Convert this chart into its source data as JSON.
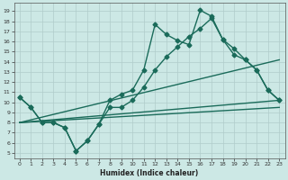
{
  "xlabel": "Humidex (Indice chaleur)",
  "background_color": "#cce8e5",
  "grid_color": "#b0ccca",
  "line_color": "#1a6b5a",
  "x_ticks": [
    0,
    1,
    2,
    3,
    4,
    5,
    6,
    7,
    8,
    9,
    10,
    11,
    12,
    13,
    14,
    15,
    16,
    17,
    18,
    19,
    20,
    21,
    22,
    23
  ],
  "y_ticks": [
    5,
    6,
    7,
    8,
    9,
    10,
    11,
    12,
    13,
    14,
    15,
    16,
    17,
    18,
    19
  ],
  "ylim": [
    4.5,
    19.8
  ],
  "xlim": [
    -0.5,
    23.5
  ],
  "line1_x": [
    0,
    1,
    2,
    3,
    4,
    5,
    6,
    7,
    8,
    9,
    10,
    11,
    12,
    13,
    14,
    15,
    16,
    17,
    18,
    19,
    20,
    21,
    22,
    23
  ],
  "line1_y": [
    10.5,
    9.5,
    8.0,
    8.0,
    7.5,
    5.2,
    6.2,
    7.8,
    10.2,
    10.8,
    11.2,
    13.2,
    17.7,
    16.7,
    16.1,
    15.7,
    19.1,
    18.5,
    16.2,
    15.3,
    14.2,
    13.2,
    11.2,
    10.2
  ],
  "line2_x": [
    0,
    1,
    2,
    3,
    4,
    5,
    6,
    7,
    8,
    9,
    10,
    11,
    12,
    13,
    14,
    15,
    16,
    17,
    18,
    19,
    20,
    21,
    22,
    23
  ],
  "line2_y": [
    10.5,
    9.5,
    8.0,
    8.0,
    7.5,
    5.2,
    6.2,
    7.8,
    9.5,
    9.5,
    10.2,
    11.5,
    13.2,
    14.5,
    15.5,
    16.5,
    17.3,
    18.3,
    16.2,
    14.7,
    14.2,
    13.2,
    11.2,
    10.2
  ],
  "line3_x": [
    0,
    23
  ],
  "line3_y": [
    8.0,
    14.2
  ],
  "line4_x": [
    0,
    23
  ],
  "line4_y": [
    8.0,
    10.2
  ],
  "line5_x": [
    0,
    23
  ],
  "line5_y": [
    8.0,
    9.5
  ],
  "marker": "D",
  "markersize": 2.5,
  "linewidth": 1.0
}
